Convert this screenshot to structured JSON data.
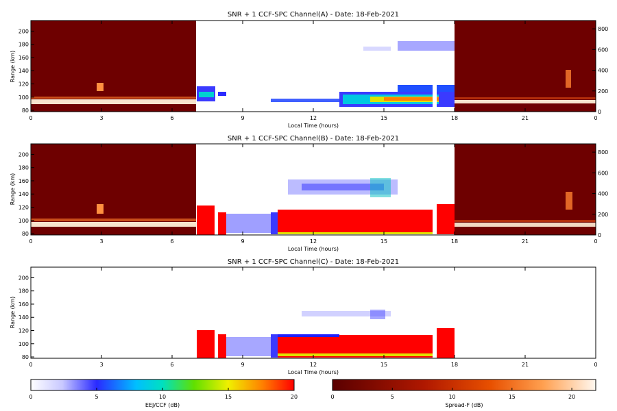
{
  "chart_data": [
    {
      "type": "heatmap",
      "title": "SNR + 1 CCF-SPC Channel(A) - Date: 18-Feb-2021",
      "xlabel": "Local Time (hours)",
      "ylabel": "Range (km)",
      "x_ticks": [
        "0",
        "3",
        "6",
        "9",
        "12",
        "15",
        "18",
        "21",
        "0"
      ],
      "y_ticks": [
        "80",
        "100",
        "120",
        "140",
        "160",
        "180",
        "200"
      ],
      "right_axis_ticks": [
        "0",
        "200",
        "400",
        "600",
        "800"
      ],
      "xlim": [
        0,
        24
      ],
      "ylim": [
        78,
        216
      ],
      "night_segments": [
        [
          0,
          7
        ],
        [
          18,
          24
        ]
      ],
      "day_segment": [
        7,
        18
      ],
      "echo_layers": [
        {
          "kind": "EEJ/CCF",
          "t_start": 7.0,
          "t_end": 8.0,
          "range_km": 104,
          "intensity_db": 8
        },
        {
          "kind": "EEJ/CCF",
          "t_start": 10.5,
          "t_end": 13.0,
          "range_km": 98,
          "intensity_db": 6
        },
        {
          "kind": "EEJ/CCF",
          "t_start": 13.0,
          "t_end": 18.0,
          "range_km": 104,
          "intensity_db": 14
        },
        {
          "kind": "EEJ/CCF",
          "t_start": 15.5,
          "t_end": 18.0,
          "range_km": 178,
          "intensity_db": 3
        }
      ]
    },
    {
      "type": "heatmap",
      "title": "SNR + 1 CCF-SPC Channel(B) - Date: 18-Feb-2021",
      "xlabel": "Local Time (hours)",
      "ylabel": "Range (km)",
      "x_ticks": [
        "0",
        "3",
        "6",
        "9",
        "12",
        "15",
        "18",
        "21",
        "0"
      ],
      "y_ticks": [
        "80",
        "100",
        "120",
        "140",
        "160",
        "180",
        "200"
      ],
      "right_axis_ticks": [
        "0",
        "200",
        "400",
        "600",
        "800"
      ],
      "xlim": [
        0,
        24
      ],
      "ylim": [
        78,
        216
      ],
      "night_segments": [
        [
          0,
          7
        ],
        [
          18,
          24
        ]
      ],
      "day_segment": [
        7,
        18
      ],
      "echo_layers": [
        {
          "kind": "EEJ/CCF",
          "t_start": 7.0,
          "t_end": 18.0,
          "range_km": 102,
          "intensity_db": 20
        },
        {
          "kind": "EEJ/CCF",
          "t_start": 10.0,
          "t_end": 16.0,
          "range_km": 148,
          "intensity_db": 4
        }
      ]
    },
    {
      "type": "heatmap",
      "title": "SNR + 1 CCF-SPC Channel(C) - Date: 18-Feb-2021",
      "xlabel": "Local Time (hours)",
      "ylabel": "Range (km)",
      "x_ticks": [
        "0",
        "3",
        "6",
        "9",
        "12",
        "15",
        "18",
        "21",
        "0"
      ],
      "y_ticks": [
        "80",
        "100",
        "120",
        "140",
        "160",
        "180",
        "200"
      ],
      "xlim": [
        0,
        24
      ],
      "ylim": [
        78,
        216
      ],
      "day_segment": [
        7,
        18
      ],
      "echo_layers": [
        {
          "kind": "EEJ/CCF",
          "t_start": 7.0,
          "t_end": 18.0,
          "range_km": 102,
          "intensity_db": 20
        },
        {
          "kind": "EEJ/CCF",
          "t_start": 10.0,
          "t_end": 16.0,
          "range_km": 146,
          "intensity_db": 3
        }
      ]
    }
  ],
  "colorbars": [
    {
      "label": "EEJ/CCF (dB)",
      "ticks": [
        "0",
        "5",
        "10",
        "15",
        "20"
      ],
      "range": [
        0,
        20
      ],
      "colormap": "rainbow"
    },
    {
      "label": "Spread-F (dB)",
      "ticks": [
        "0",
        "5",
        "10",
        "15",
        "20"
      ],
      "range": [
        0,
        22
      ],
      "colormap": "hot"
    }
  ],
  "colors": {
    "night_bg": "#6e0000",
    "eej_low": "#3a3aff",
    "eej_mid": "#00e0e0",
    "eej_high": "#ff0000",
    "spreadf_bright": "#fff4e0"
  }
}
